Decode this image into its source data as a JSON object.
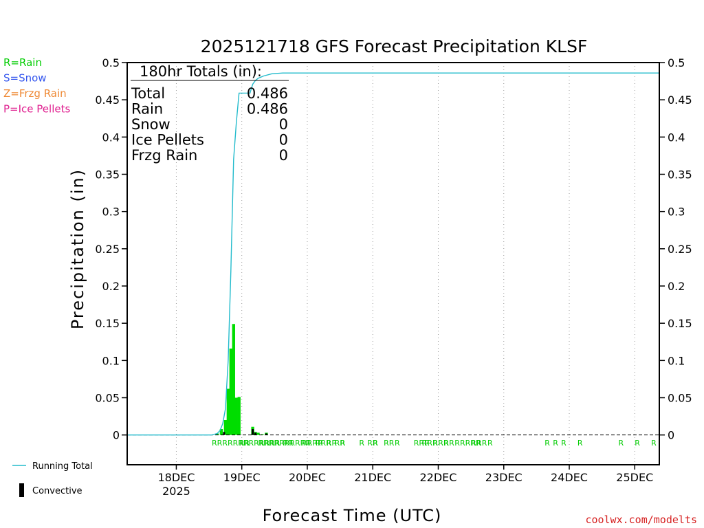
{
  "chart_data": {
    "type": "bar",
    "title": "2025121718 GFS Forecast Precipitation KLSF",
    "xlabel": "Forecast Time (UTC)",
    "ylabel": "Precipitation (in)",
    "ylim": [
      -0.04,
      0.5
    ],
    "yticks": [
      0,
      0.05,
      0.1,
      0.15,
      0.2,
      0.25,
      0.3,
      0.35,
      0.4,
      0.45,
      0.5
    ],
    "ytick_labels": [
      "0",
      "0.05",
      "0.1",
      "0.15",
      "0.2",
      "0.25",
      "0.3",
      "0.35",
      "0.4",
      "0.45",
      "0.5"
    ],
    "xlim_hours": [
      -12,
      183
    ],
    "xticks": [
      {
        "hour": 6,
        "label": "18DEC",
        "sub": "2025"
      },
      {
        "hour": 30,
        "label": "19DEC"
      },
      {
        "hour": 54,
        "label": "20DEC"
      },
      {
        "hour": 78,
        "label": "21DEC"
      },
      {
        "hour": 102,
        "label": "22DEC"
      },
      {
        "hour": 126,
        "label": "23DEC"
      },
      {
        "hour": 150,
        "label": "24DEC"
      },
      {
        "hour": 174,
        "label": "25DEC"
      }
    ],
    "bar_hours": 3,
    "rain_bars": [
      {
        "hour": 21,
        "value": 0.002
      },
      {
        "hour": 22.5,
        "value": 0.008
      },
      {
        "hour": 24,
        "value": 0.02
      },
      {
        "hour": 25,
        "value": 0.062
      },
      {
        "hour": 26,
        "value": 0.116
      },
      {
        "hour": 27,
        "value": 0.149
      },
      {
        "hour": 28,
        "value": 0.05
      },
      {
        "hour": 29,
        "value": 0.051
      },
      {
        "hour": 34,
        "value": 0.011
      },
      {
        "hour": 35,
        "value": 0.004
      },
      {
        "hour": 36,
        "value": 0.003
      },
      {
        "hour": 37.5,
        "value": 0.001
      },
      {
        "hour": 39,
        "value": 0.003
      }
    ],
    "convective_bars": [
      {
        "hour": 23.5,
        "value": 0.004
      },
      {
        "hour": 34,
        "value": 0.008
      },
      {
        "hour": 35,
        "value": 0.003
      },
      {
        "hour": 39,
        "value": 0.002
      }
    ],
    "running_total": [
      [
        -12,
        0
      ],
      [
        19,
        0
      ],
      [
        21,
        0.002
      ],
      [
        22,
        0.006
      ],
      [
        23,
        0.015
      ],
      [
        24,
        0.035
      ],
      [
        25,
        0.1
      ],
      [
        26,
        0.22
      ],
      [
        27,
        0.37
      ],
      [
        28,
        0.42
      ],
      [
        29,
        0.459
      ],
      [
        30,
        0.459
      ],
      [
        33,
        0.459
      ],
      [
        34,
        0.471
      ],
      [
        35,
        0.476
      ],
      [
        36,
        0.479
      ],
      [
        38,
        0.482
      ],
      [
        41,
        0.485
      ],
      [
        45,
        0.486
      ],
      [
        183,
        0.486
      ]
    ],
    "ptype_markers": [
      {
        "hour": 19,
        "label": "RRRRRRRRRRRRR"
      },
      {
        "hour": 29,
        "label": "RR"
      },
      {
        "hour": 36,
        "label": "RRRRRRRRRR"
      },
      {
        "hour": 45,
        "label": "RR"
      },
      {
        "hour": 52,
        "label": "RRRR"
      },
      {
        "hour": 57,
        "label": "RRR"
      },
      {
        "hour": 61,
        "label": "RR"
      },
      {
        "hour": 64,
        "label": "RR"
      },
      {
        "hour": 66,
        "label": "R"
      },
      {
        "hour": 73,
        "label": "R"
      },
      {
        "hour": 76,
        "label": "RR"
      },
      {
        "hour": 78,
        "label": "R"
      },
      {
        "hour": 82,
        "label": "RR"
      },
      {
        "hour": 86,
        "label": "R"
      },
      {
        "hour": 93,
        "label": "RRR"
      },
      {
        "hour": 96,
        "label": "RRR"
      },
      {
        "hour": 100,
        "label": "RRR"
      },
      {
        "hour": 104,
        "label": "RR"
      },
      {
        "hour": 108,
        "label": "RRRRR"
      },
      {
        "hour": 114,
        "label": "R"
      },
      {
        "hour": 116,
        "label": "RR"
      },
      {
        "hour": 120,
        "label": "R"
      },
      {
        "hour": 141,
        "label": "R"
      },
      {
        "hour": 144,
        "label": "R"
      },
      {
        "hour": 147,
        "label": "R"
      },
      {
        "hour": 153,
        "label": "R"
      },
      {
        "hour": 168,
        "label": "R"
      },
      {
        "hour": 174,
        "label": "R"
      },
      {
        "hour": 180,
        "label": "R"
      }
    ]
  },
  "totals_box": {
    "heading": "180hr Totals (in):",
    "rows": [
      {
        "label": "Total",
        "value": "0.486"
      },
      {
        "label": "Rain",
        "value": "0.486"
      },
      {
        "label": "Snow",
        "value": "0"
      },
      {
        "label": "Ice Pellets",
        "value": "0"
      },
      {
        "label": "Frzg Rain",
        "value": "0"
      }
    ]
  },
  "ptype_legend": [
    {
      "text": "R=Rain",
      "color": "#00cc00"
    },
    {
      "text": "S=Snow",
      "color": "#3355ee"
    },
    {
      "text": "Z=Frzg Rain",
      "color": "#ee8833"
    },
    {
      "text": "P=Ice Pellets",
      "color": "#e02090"
    }
  ],
  "series_legend": {
    "running_total": "Running Total",
    "convective": "Convective"
  },
  "colors": {
    "rain": "#00dd00",
    "convective": "#000000",
    "running_total": "#22bbcc",
    "grid": "#999999"
  },
  "credit": "coolwx.com/modelts"
}
